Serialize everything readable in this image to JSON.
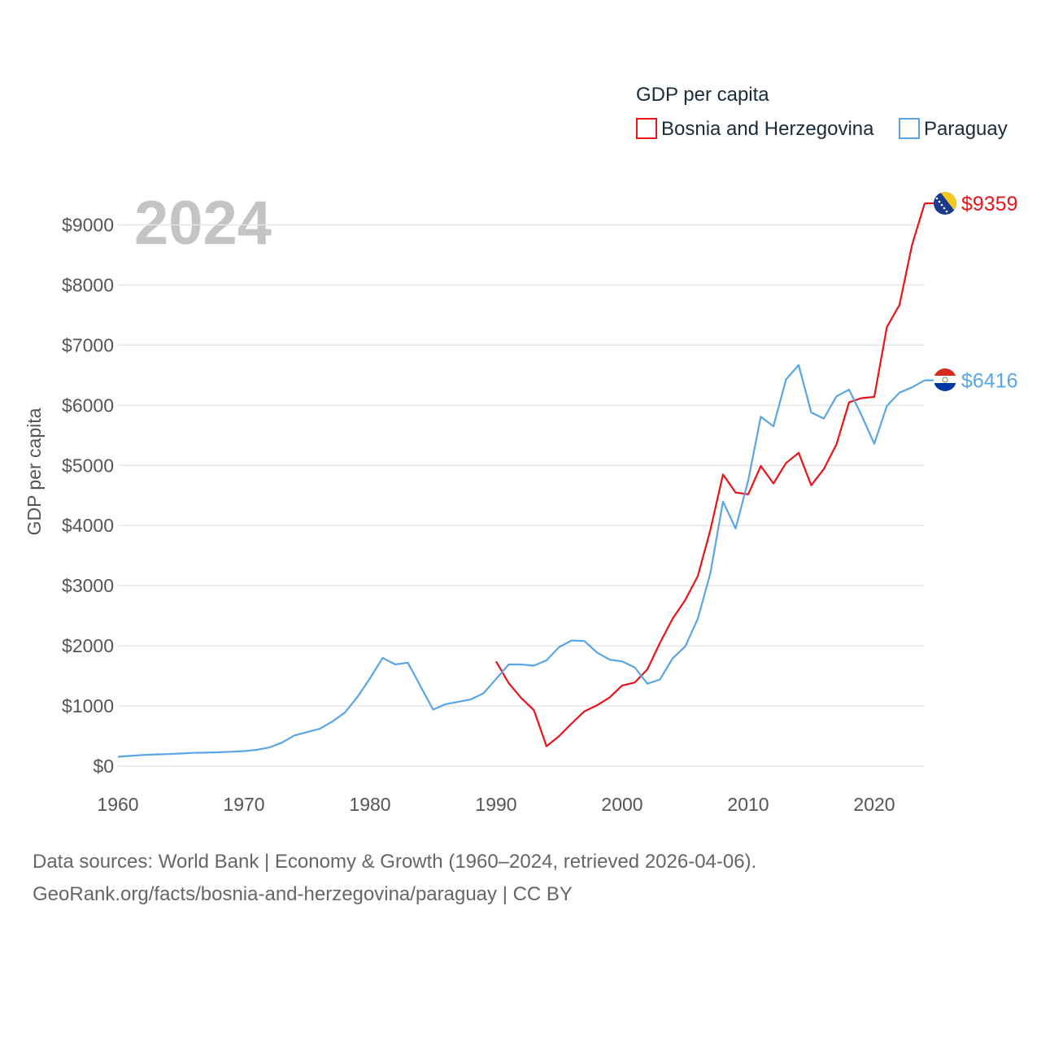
{
  "footer": {
    "line1": "Data sources: World Bank | Economy & Growth (1960–2024, retrieved 2026-04-06).",
    "line2": "GeoRank.org/facts/bosnia-and-herzegovina/paraguay | CC BY"
  },
  "chart_data": {
    "type": "line",
    "title": "GDP per capita",
    "year_stamp": "2024",
    "xlabel": "",
    "ylabel": "GDP per capita",
    "xlim": [
      1960,
      2024
    ],
    "ylim": [
      0,
      9359
    ],
    "x_ticks": [
      1960,
      1970,
      1980,
      1990,
      2000,
      2010,
      2020
    ],
    "y_ticks": [
      0,
      1000,
      2000,
      3000,
      4000,
      5000,
      6000,
      7000,
      8000,
      9000
    ],
    "y_tick_labels": [
      "$0",
      "$1000",
      "$2000",
      "$3000",
      "$4000",
      "$5000",
      "$6000",
      "$7000",
      "$8000",
      "$9000"
    ],
    "legend_title": "GDP per capita",
    "legend_position": "top-right",
    "grid": true,
    "series": [
      {
        "name": "Bosnia and Herzegovina",
        "color": "#e8141a",
        "flag_icon": "bosnia-flag-icon",
        "end_label": "$9359",
        "x": [
          1990,
          1991,
          1992,
          1993,
          1994,
          1995,
          1996,
          1997,
          1998,
          1999,
          2000,
          2001,
          2002,
          2003,
          2004,
          2005,
          2006,
          2007,
          2008,
          2009,
          2010,
          2011,
          2012,
          2013,
          2014,
          2015,
          2016,
          2017,
          2018,
          2019,
          2020,
          2021,
          2022,
          2023,
          2024
        ],
        "values": [
          1740,
          1380,
          1130,
          930,
          330,
          500,
          710,
          910,
          1010,
          1140,
          1340,
          1390,
          1610,
          2050,
          2450,
          2760,
          3160,
          3930,
          4850,
          4550,
          4520,
          4990,
          4700,
          5040,
          5210,
          4670,
          4940,
          5350,
          6050,
          6120,
          6140,
          7300,
          7670,
          8670,
          9359
        ]
      },
      {
        "name": "Paraguay",
        "color": "#5aa5e6",
        "flag_icon": "paraguay-flag-icon",
        "end_label": "$6416",
        "x": [
          1960,
          1961,
          1962,
          1963,
          1964,
          1965,
          1966,
          1967,
          1968,
          1969,
          1970,
          1971,
          1972,
          1973,
          1974,
          1975,
          1976,
          1977,
          1978,
          1979,
          1980,
          1981,
          1982,
          1983,
          1984,
          1985,
          1986,
          1987,
          1988,
          1989,
          1990,
          1991,
          1992,
          1993,
          1994,
          1995,
          1996,
          1997,
          1998,
          1999,
          2000,
          2001,
          2002,
          2003,
          2004,
          2005,
          2006,
          2007,
          2008,
          2009,
          2010,
          2011,
          2012,
          2013,
          2014,
          2015,
          2016,
          2017,
          2018,
          2019,
          2020,
          2021,
          2022,
          2023,
          2024
        ],
        "values": [
          155,
          170,
          185,
          195,
          200,
          210,
          220,
          225,
          230,
          240,
          250,
          270,
          310,
          390,
          510,
          565,
          620,
          740,
          890,
          1150,
          1460,
          1800,
          1690,
          1720,
          1330,
          940,
          1030,
          1070,
          1110,
          1210,
          1450,
          1690,
          1690,
          1670,
          1760,
          1980,
          2090,
          2080,
          1890,
          1770,
          1740,
          1640,
          1370,
          1440,
          1790,
          1990,
          2450,
          3210,
          4400,
          3950,
          4750,
          5810,
          5650,
          6430,
          6670,
          5880,
          5780,
          6150,
          6260,
          5830,
          5360,
          5990,
          6210,
          6300,
          6416
        ]
      }
    ]
  }
}
